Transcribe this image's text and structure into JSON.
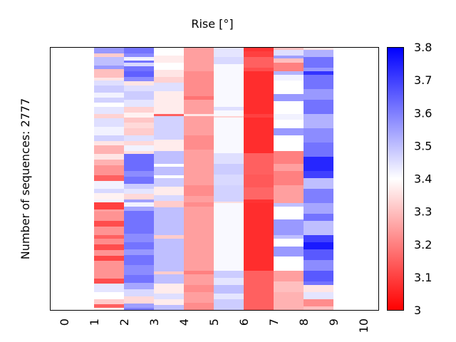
{
  "chart_data": {
    "type": "heatmap",
    "title": "Rise [°]",
    "xlabel": "",
    "ylabel": "Number of sequences: 2777",
    "n_sequences": 2777,
    "x_ticks": [
      "0",
      "1",
      "2",
      "3",
      "4",
      "5",
      "6",
      "7",
      "8",
      "9",
      "10"
    ],
    "xlim": [
      0,
      10
    ],
    "ylim": [
      0,
      2777
    ],
    "colormap": {
      "name": "bwr",
      "low_color": "#ff0000",
      "mid_color": "#ffffff",
      "high_color": "#0000ff",
      "vmin": 3.0,
      "vmax": 3.8
    },
    "colorbar_ticks": [
      "3",
      "3.1",
      "3.2",
      "3.3",
      "3.4",
      "3.5",
      "3.6",
      "3.7",
      "3.8"
    ],
    "colorbar_tick_values": [
      3.0,
      3.1,
      3.2,
      3.3,
      3.4,
      3.5,
      3.6,
      3.7,
      3.8
    ],
    "columns": [
      {
        "x_start": 1,
        "x_end": 2,
        "blocks": [
          [
            0,
            3.56
          ],
          [
            68,
            3.32
          ],
          [
            105,
            3.5
          ],
          [
            196,
            3.56
          ],
          [
            233,
            3.3
          ],
          [
            324,
            3.36
          ],
          [
            354,
            3.45
          ],
          [
            406,
            3.48
          ],
          [
            482,
            3.42
          ],
          [
            534,
            3.47
          ],
          [
            587,
            3.4
          ],
          [
            632,
            3.44
          ],
          [
            707,
            3.33
          ],
          [
            752,
            3.45
          ],
          [
            843,
            3.42
          ],
          [
            933,
            3.47
          ],
          [
            993,
            3.36
          ],
          [
            1038,
            3.28
          ],
          [
            1129,
            3.36
          ],
          [
            1189,
            3.28
          ],
          [
            1249,
            3.23
          ],
          [
            1355,
            3.15
          ],
          [
            1415,
            3.42
          ],
          [
            1498,
            3.46
          ],
          [
            1543,
            3.38
          ],
          [
            1611,
            3.42
          ],
          [
            1641,
            3.1
          ],
          [
            1716,
            3.25
          ],
          [
            1739,
            3.23
          ],
          [
            1836,
            3.12
          ],
          [
            1897,
            3.23
          ],
          [
            1987,
            3.15
          ],
          [
            2024,
            3.22
          ],
          [
            2084,
            3.12
          ],
          [
            2145,
            3.23
          ],
          [
            2205,
            3.11
          ],
          [
            2258,
            3.23
          ],
          [
            2446,
            3.12
          ],
          [
            2499,
            3.44
          ],
          [
            2589,
            3.4
          ],
          [
            2664,
            3.32
          ],
          [
            2717,
            3.15
          ],
          [
            2755,
            3.38
          ]
        ]
      },
      {
        "x_start": 2,
        "x_end": 3,
        "blocks": [
          [
            0,
            3.62
          ],
          [
            68,
            3.58
          ],
          [
            105,
            3.42
          ],
          [
            143,
            3.62
          ],
          [
            166,
            3.46
          ],
          [
            203,
            3.62
          ],
          [
            256,
            3.65
          ],
          [
            316,
            3.58
          ],
          [
            361,
            3.36
          ],
          [
            406,
            3.45
          ],
          [
            467,
            3.48
          ],
          [
            557,
            3.44
          ],
          [
            632,
            3.33
          ],
          [
            692,
            3.38
          ],
          [
            745,
            3.31
          ],
          [
            798,
            3.34
          ],
          [
            858,
            3.32
          ],
          [
            933,
            3.45
          ],
          [
            993,
            3.34
          ],
          [
            1038,
            3.42
          ],
          [
            1099,
            3.35
          ],
          [
            1129,
            3.63
          ],
          [
            1309,
            3.58
          ],
          [
            1370,
            3.62
          ],
          [
            1445,
            3.48
          ],
          [
            1498,
            3.44
          ],
          [
            1550,
            3.34
          ],
          [
            1611,
            3.55
          ],
          [
            1641,
            3.42
          ],
          [
            1686,
            3.54
          ],
          [
            1731,
            3.62
          ],
          [
            1972,
            3.58
          ],
          [
            2062,
            3.62
          ],
          [
            2137,
            3.56
          ],
          [
            2197,
            3.62
          ],
          [
            2303,
            3.58
          ],
          [
            2408,
            3.62
          ],
          [
            2491,
            3.54
          ],
          [
            2559,
            3.46
          ],
          [
            2634,
            3.34
          ],
          [
            2709,
            3.55
          ],
          [
            2755,
            3.6
          ]
        ]
      },
      {
        "x_start": 3,
        "x_end": 4,
        "blocks": [
          [
            0,
            3.4
          ],
          [
            90,
            3.37
          ],
          [
            166,
            3.4
          ],
          [
            241,
            3.36
          ],
          [
            316,
            3.33
          ],
          [
            376,
            3.45
          ],
          [
            467,
            3.37
          ],
          [
            707,
            3.15
          ],
          [
            730,
            3.47
          ],
          [
            980,
            3.37
          ],
          [
            1099,
            3.5
          ],
          [
            1235,
            3.4
          ],
          [
            1265,
            3.5
          ],
          [
            1355,
            3.4
          ],
          [
            1385,
            3.48
          ],
          [
            1475,
            3.37
          ],
          [
            1565,
            3.46
          ],
          [
            1626,
            3.32
          ],
          [
            1693,
            3.5
          ],
          [
            1987,
            3.32
          ],
          [
            2024,
            3.5
          ],
          [
            2371,
            3.32
          ],
          [
            2401,
            3.5
          ],
          [
            2499,
            3.37
          ],
          [
            2604,
            3.45
          ],
          [
            2664,
            3.37
          ],
          [
            2724,
            3.5
          ]
        ]
      },
      {
        "x_start": 4,
        "x_end": 5,
        "blocks": [
          [
            0,
            3.25
          ],
          [
            256,
            3.22
          ],
          [
            519,
            3.18
          ],
          [
            557,
            3.25
          ],
          [
            707,
            3.36
          ],
          [
            730,
            3.25
          ],
          [
            933,
            3.22
          ],
          [
            1084,
            3.25
          ],
          [
            1460,
            3.22
          ],
          [
            1573,
            3.25
          ],
          [
            1641,
            3.22
          ],
          [
            1686,
            3.25
          ],
          [
            2363,
            3.2
          ],
          [
            2401,
            3.25
          ],
          [
            2514,
            3.22
          ],
          [
            2589,
            3.25
          ],
          [
            2702,
            3.22
          ]
        ]
      },
      {
        "x_start": 5,
        "x_end": 6,
        "blocks": [
          [
            0,
            3.44
          ],
          [
            105,
            3.46
          ],
          [
            181,
            3.41
          ],
          [
            632,
            3.45
          ],
          [
            670,
            3.41
          ],
          [
            730,
            3.33
          ],
          [
            745,
            3.41
          ],
          [
            1121,
            3.45
          ],
          [
            1234,
            3.48
          ],
          [
            1347,
            3.46
          ],
          [
            1460,
            3.47
          ],
          [
            1633,
            3.35
          ],
          [
            1648,
            3.41
          ],
          [
            2363,
            3.48
          ],
          [
            2438,
            3.44
          ],
          [
            2514,
            3.5
          ],
          [
            2604,
            3.44
          ],
          [
            2664,
            3.48
          ]
        ]
      },
      {
        "x_start": 6,
        "x_end": 7,
        "blocks": [
          [
            0,
            3.08
          ],
          [
            45,
            3.1
          ],
          [
            105,
            3.15
          ],
          [
            218,
            3.12
          ],
          [
            256,
            3.07
          ],
          [
            707,
            3.1
          ],
          [
            745,
            3.07
          ],
          [
            1121,
            3.15
          ],
          [
            1347,
            3.14
          ],
          [
            1482,
            3.16
          ],
          [
            1611,
            3.08
          ],
          [
            1648,
            3.07
          ],
          [
            2363,
            3.15
          ]
        ]
      },
      {
        "x_start": 7,
        "x_end": 8,
        "blocks": [
          [
            0,
            3.3
          ],
          [
            30,
            3.45
          ],
          [
            90,
            3.55
          ],
          [
            120,
            3.3
          ],
          [
            166,
            3.2
          ],
          [
            256,
            3.52
          ],
          [
            293,
            3.42
          ],
          [
            354,
            3.4
          ],
          [
            497,
            3.56
          ],
          [
            572,
            3.4
          ],
          [
            707,
            3.42
          ],
          [
            767,
            3.4
          ],
          [
            858,
            3.56
          ],
          [
            933,
            3.4
          ],
          [
            1099,
            3.2
          ],
          [
            1234,
            3.25
          ],
          [
            1309,
            3.2
          ],
          [
            1460,
            3.25
          ],
          [
            1648,
            3.5
          ],
          [
            1686,
            3.4
          ],
          [
            1821,
            3.56
          ],
          [
            1987,
            3.5
          ],
          [
            2024,
            3.4
          ],
          [
            2107,
            3.56
          ],
          [
            2213,
            3.4
          ],
          [
            2363,
            3.25
          ],
          [
            2476,
            3.3
          ],
          [
            2589,
            3.28
          ]
        ]
      },
      {
        "x_start": 8,
        "x_end": 9,
        "blocks": [
          [
            0,
            3.36
          ],
          [
            30,
            3.52
          ],
          [
            105,
            3.62
          ],
          [
            218,
            3.56
          ],
          [
            256,
            3.72
          ],
          [
            293,
            3.62
          ],
          [
            444,
            3.56
          ],
          [
            557,
            3.62
          ],
          [
            707,
            3.52
          ],
          [
            858,
            3.58
          ],
          [
            1008,
            3.62
          ],
          [
            1159,
            3.74
          ],
          [
            1309,
            3.7
          ],
          [
            1385,
            3.5
          ],
          [
            1498,
            3.6
          ],
          [
            1648,
            3.54
          ],
          [
            1761,
            3.62
          ],
          [
            1836,
            3.5
          ],
          [
            1987,
            3.7
          ],
          [
            2062,
            3.76
          ],
          [
            2137,
            3.66
          ],
          [
            2250,
            3.58
          ],
          [
            2363,
            3.66
          ],
          [
            2476,
            3.62
          ],
          [
            2514,
            3.36
          ],
          [
            2589,
            3.44
          ],
          [
            2664,
            3.22
          ],
          [
            2739,
            3.3
          ]
        ]
      }
    ]
  }
}
